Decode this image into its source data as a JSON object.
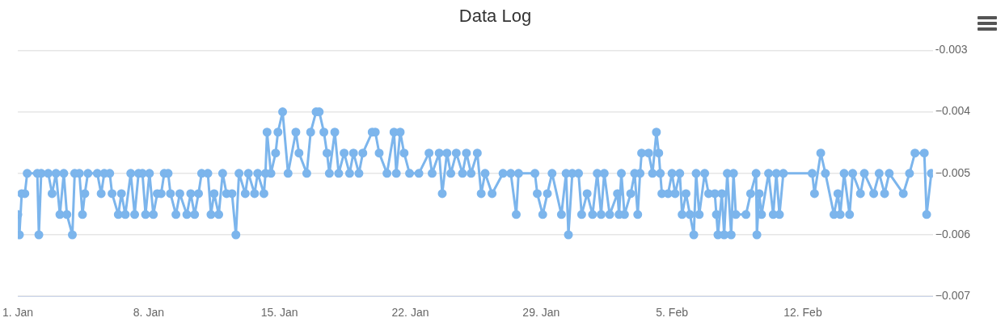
{
  "chart_data": {
    "type": "line",
    "title": "Data Log",
    "xlim": [
      "--01-01",
      "--02-18T23:00"
    ],
    "xticks": [
      {
        "value": "--01-01",
        "label": "1. Jan"
      },
      {
        "value": "--01-08",
        "label": "8. Jan"
      },
      {
        "value": "--01-15",
        "label": "15. Jan"
      },
      {
        "value": "--01-22",
        "label": "22. Jan"
      },
      {
        "value": "--01-29",
        "label": "29. Jan"
      },
      {
        "value": "--02-05",
        "label": "5. Feb"
      },
      {
        "value": "--02-12",
        "label": "12. Feb"
      }
    ],
    "ylim": [
      -0.007,
      -0.003
    ],
    "yticks": [
      {
        "value": -0.007,
        "label": "−0.007"
      },
      {
        "value": -0.006,
        "label": "−0.006"
      },
      {
        "value": -0.005,
        "label": "−0.005"
      },
      {
        "value": -0.004,
        "label": "−0.004"
      },
      {
        "value": -0.003,
        "label": "-0.003"
      }
    ],
    "grid": "y",
    "legend": false,
    "marker": "circle",
    "line_style": "solid",
    "x": [
      "--01-01T00:00",
      "--01-01T02:00",
      "--01-01T05:00",
      "--01-01T09:00",
      "--01-01T12:00",
      "--01-02T01:00",
      "--01-02T03:00",
      "--01-02T06:00",
      "--01-02T15:00",
      "--01-02T20:00",
      "--01-03T01:00",
      "--01-03T06:00",
      "--01-03T11:00",
      "--01-03T15:00",
      "--01-03T22:00",
      "--01-04T01:00",
      "--01-04T07:00",
      "--01-04T11:00",
      "--01-04T14:00",
      "--01-04T18:00",
      "--01-05T06:00",
      "--01-05T11:00",
      "--01-05T15:00",
      "--01-05T22:00",
      "--01-06T01:00",
      "--01-06T09:00",
      "--01-06T13:00",
      "--01-06T18:00",
      "--01-07T01:00",
      "--01-07T06:00",
      "--01-07T11:00",
      "--01-07T16:00",
      "--01-07T20:00",
      "--01-08T01:00",
      "--01-08T06:00",
      "--01-08T11:00",
      "--01-08T16:00",
      "--01-08T20:00",
      "--01-09T01:00",
      "--01-09T04:00",
      "--01-09T11:00",
      "--01-09T16:00",
      "--01-10T01:00",
      "--01-10T06:00",
      "--01-10T11:00",
      "--01-10T16:00",
      "--01-10T20:00",
      "--01-11T04:00",
      "--01-11T08:00",
      "--01-11T12:00",
      "--01-11T18:00",
      "--01-11T23:00",
      "--01-12T04:00",
      "--01-12T11:00",
      "--01-12T16:00",
      "--01-12T20:00",
      "--01-13T04:00",
      "--01-13T08:00",
      "--01-13T16:00",
      "--01-13T20:00",
      "--01-14T04:00",
      "--01-14T06:00",
      "--01-14T08:00",
      "--01-14T13:00",
      "--01-14T19:00",
      "--01-14T22:00",
      "--01-15T04:00",
      "--01-15T11:00",
      "--01-15T21:00",
      "--01-16T01:00",
      "--01-16T11:00",
      "--01-16T16:00",
      "--01-16T23:00",
      "--01-17T03:00",
      "--01-17T09:00",
      "--01-17T13:00",
      "--01-17T16:00",
      "--01-17T23:00",
      "--01-18T04:00",
      "--01-18T11:00",
      "--01-18T18:00",
      "--01-18T23:00",
      "--01-19T06:00",
      "--01-19T11:00",
      "--01-19T23:00",
      "--01-20T03:00",
      "--01-20T08:00",
      "--01-20T18:00",
      "--01-21T03:00",
      "--01-21T06:00",
      "--01-21T11:00",
      "--01-21T16:00",
      "--01-21T23:00",
      "--01-22T11:00",
      "--01-23T00:00",
      "--01-23T04:00",
      "--01-23T13:00",
      "--01-23T17:00",
      "--01-23T23:00",
      "--01-24T04:00",
      "--01-24T11:00",
      "--01-24T19:00",
      "--01-25T00:00",
      "--01-25T06:00",
      "--01-25T14:00",
      "--01-25T19:00",
      "--01-26T00:00",
      "--01-26T09:00",
      "--01-26T23:00",
      "--01-27T09:00",
      "--01-27T16:00",
      "--01-27T19:00",
      "--01-28T16:00",
      "--01-28T19:00",
      "--01-29T02:00",
      "--01-29T08:00",
      "--01-29T14:00",
      "--01-30T02:00",
      "--01-30T08:00",
      "--01-30T11:00",
      "--01-30T16:00",
      "--01-31T00:00",
      "--01-31T04:00",
      "--01-31T11:00",
      "--01-31T18:00",
      "--02-01T00:00",
      "--02-01T05:00",
      "--02-01T09:00",
      "--02-01T16:00",
      "--02-02T02:00",
      "--02-02T04:00",
      "--02-02T07:00",
      "--02-02T11:00",
      "--02-02T19:00",
      "--02-03T00:00",
      "--02-03T04:00",
      "--02-03T07:00",
      "--02-03T09:00",
      "--02-03T18:00",
      "--02-03T23:00",
      "--02-04T04:00",
      "--02-04T07:00",
      "--02-04T09:00",
      "--02-04T11:00",
      "--02-04T19:00",
      "--02-05T00:00",
      "--02-05T04:00",
      "--02-05T10:00",
      "--02-05T13:00",
      "--02-05T18:00",
      "--02-05T23:00",
      "--02-06T04:00",
      "--02-06T07:00",
      "--02-06T11:00",
      "--02-06T18:00",
      "--02-06T23:00",
      "--02-07T07:00",
      "--02-07T09:00",
      "--02-07T11:00",
      "--02-07T16:00",
      "--02-07T19:00",
      "--02-07T23:00",
      "--02-08T04:00",
      "--02-08T07:00",
      "--02-08T10:00",
      "--02-08T23:00",
      "--02-09T05:00",
      "--02-09T12:00",
      "--02-09T13:00",
      "--02-09T16:00",
      "--02-09T19:00",
      "--02-10T04:00",
      "--02-10T10:00",
      "--02-10T14:00",
      "--02-10T18:00",
      "--02-10T23:00",
      "--02-12T12:00",
      "--02-12T15:00",
      "--02-12T23:00",
      "--02-13T05:00",
      "--02-13T16:00",
      "--02-13T21:00",
      "--02-14T00:00",
      "--02-14T05:00",
      "--02-14T12:00",
      "--02-14T16:00",
      "--02-15T02:00",
      "--02-15T07:00",
      "--02-15T19:00",
      "--02-16T02:00",
      "--02-16T09:00",
      "--02-16T15:00",
      "--02-17T09:00",
      "--02-17T17:00",
      "--02-18T00:00",
      "--02-18T12:00",
      "--02-18T15:00",
      "--02-18T21:00"
    ],
    "series": [
      {
        "color": "#7cb5ec",
        "values": [
          -0.00567,
          -0.006,
          -0.00533,
          -0.00533,
          -0.005,
          -0.005,
          -0.006,
          -0.005,
          -0.005,
          -0.00533,
          -0.005,
          -0.00567,
          -0.005,
          -0.00567,
          -0.006,
          -0.005,
          -0.005,
          -0.00567,
          -0.00533,
          -0.005,
          -0.005,
          -0.00533,
          -0.005,
          -0.005,
          -0.00533,
          -0.00567,
          -0.00533,
          -0.00567,
          -0.005,
          -0.00567,
          -0.005,
          -0.005,
          -0.00567,
          -0.005,
          -0.00567,
          -0.00533,
          -0.00533,
          -0.005,
          -0.005,
          -0.00533,
          -0.00567,
          -0.00533,
          -0.00567,
          -0.00533,
          -0.00567,
          -0.00533,
          -0.005,
          -0.005,
          -0.00567,
          -0.00533,
          -0.00567,
          -0.005,
          -0.00533,
          -0.00533,
          -0.006,
          -0.005,
          -0.00533,
          -0.005,
          -0.00533,
          -0.005,
          -0.00533,
          -0.005,
          -0.00433,
          -0.005,
          -0.00467,
          -0.00433,
          -0.004,
          -0.005,
          -0.00433,
          -0.00467,
          -0.005,
          -0.00433,
          -0.004,
          -0.004,
          -0.00433,
          -0.00467,
          -0.005,
          -0.00433,
          -0.005,
          -0.00467,
          -0.005,
          -0.00467,
          -0.005,
          -0.00467,
          -0.00433,
          -0.00433,
          -0.00467,
          -0.005,
          -0.00433,
          -0.005,
          -0.00433,
          -0.00467,
          -0.005,
          -0.005,
          -0.00467,
          -0.005,
          -0.00467,
          -0.00533,
          -0.00467,
          -0.005,
          -0.00467,
          -0.005,
          -0.00467,
          -0.005,
          -0.00467,
          -0.00533,
          -0.005,
          -0.00533,
          -0.005,
          -0.005,
          -0.00567,
          -0.005,
          -0.005,
          -0.00533,
          -0.00567,
          -0.00533,
          -0.005,
          -0.00567,
          -0.005,
          -0.006,
          -0.005,
          -0.005,
          -0.00567,
          -0.00533,
          -0.00567,
          -0.005,
          -0.00567,
          -0.005,
          -0.00567,
          -0.00533,
          -0.00567,
          -0.005,
          -0.00567,
          -0.00533,
          -0.005,
          -0.00567,
          -0.005,
          -0.00467,
          -0.00467,
          -0.005,
          -0.00433,
          -0.00467,
          -0.005,
          -0.00533,
          -0.00533,
          -0.005,
          -0.00533,
          -0.005,
          -0.00567,
          -0.00533,
          -0.00567,
          -0.006,
          -0.005,
          -0.00567,
          -0.005,
          -0.00533,
          -0.00533,
          -0.00567,
          -0.006,
          -0.00533,
          -0.006,
          -0.005,
          -0.006,
          -0.005,
          -0.00567,
          -0.00567,
          -0.00533,
          -0.005,
          -0.006,
          -0.00533,
          -0.00567,
          -0.005,
          -0.00567,
          -0.005,
          -0.00567,
          -0.005,
          -0.005,
          -0.00533,
          -0.00467,
          -0.005,
          -0.00567,
          -0.00533,
          -0.00567,
          -0.005,
          -0.00567,
          -0.005,
          -0.00533,
          -0.005,
          -0.00533,
          -0.005,
          -0.00533,
          -0.005,
          -0.00533,
          -0.005,
          -0.00467,
          -0.00467,
          -0.00567,
          -0.005
        ]
      }
    ]
  }
}
